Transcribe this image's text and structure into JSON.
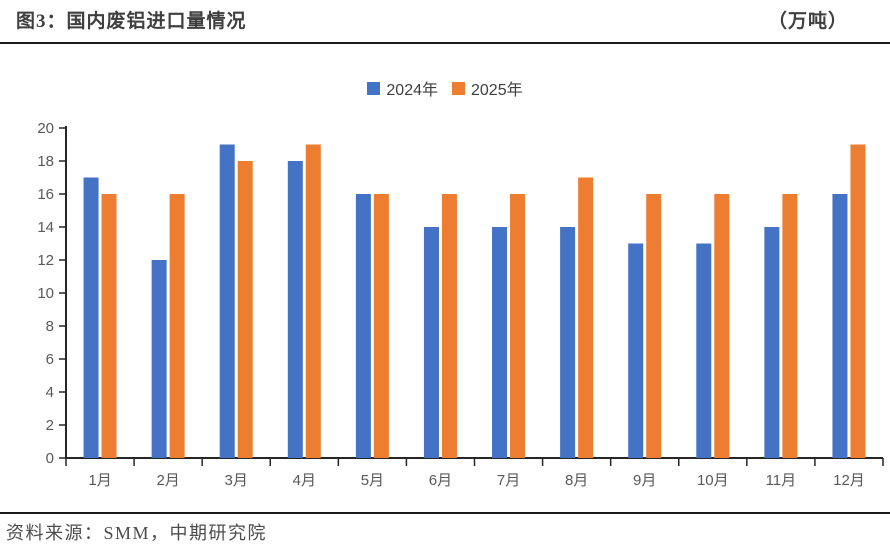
{
  "header": {
    "title": "图3：国内废铝进口量情况",
    "unit": "（万吨）"
  },
  "chart_data": {
    "type": "bar",
    "title": "国内废铝进口量情况",
    "unit_label": "万吨",
    "categories": [
      "1月",
      "2月",
      "3月",
      "4月",
      "5月",
      "6月",
      "7月",
      "8月",
      "9月",
      "10月",
      "11月",
      "12月"
    ],
    "series": [
      {
        "name": "2024年",
        "color": "#4472C4",
        "values": [
          17,
          12,
          19,
          18,
          16,
          14,
          14,
          14,
          13,
          13,
          14,
          16
        ]
      },
      {
        "name": "2025年",
        "color": "#ED7D31",
        "values": [
          16,
          16,
          18,
          19,
          16,
          16,
          16,
          17,
          16,
          16,
          16,
          19
        ]
      }
    ],
    "xlabel": "",
    "ylabel": "",
    "ylim": [
      0,
      20
    ],
    "ytick_step": 2,
    "yticks": [
      0,
      2,
      4,
      6,
      8,
      10,
      12,
      14,
      16,
      18,
      20
    ],
    "grid": false,
    "legend_position": "top-center"
  },
  "footer": {
    "source": "资料来源：SMM，中期研究院"
  },
  "colors": {
    "axis": "#262626",
    "tick_label": "#595959",
    "title_text": "#3f3f3f",
    "footer_text": "#4d4d4d"
  }
}
